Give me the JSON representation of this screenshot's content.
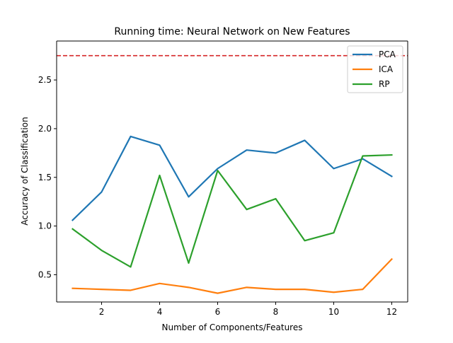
{
  "chart_data": {
    "type": "line",
    "title": "Running time: Neural Network on New Features",
    "xlabel": "Number of Components/Features",
    "ylabel": "Accuracy of Classification",
    "xlim": [
      0.45,
      12.55
    ],
    "ylim": [
      0.22,
      2.9
    ],
    "x": [
      1,
      2,
      3,
      4,
      5,
      6,
      7,
      8,
      9,
      10,
      11,
      12
    ],
    "xticks": [
      2,
      4,
      6,
      8,
      10,
      12
    ],
    "yticks": [
      0.5,
      1.0,
      1.5,
      2.0,
      2.5
    ],
    "xtick_labels": [
      "2",
      "4",
      "6",
      "8",
      "10",
      "12"
    ],
    "ytick_labels": [
      "0.5",
      "1.0",
      "1.5",
      "2.0",
      "2.5"
    ],
    "grid": false,
    "legend_position": "top-right",
    "reference_line": {
      "y": 2.75,
      "color": "#d62728",
      "style": "dashed"
    },
    "series": [
      {
        "name": "PCA",
        "color": "#1f77b4",
        "values": [
          1.06,
          1.35,
          1.92,
          1.83,
          1.3,
          1.59,
          1.78,
          1.75,
          1.88,
          1.59,
          1.69,
          1.51
        ]
      },
      {
        "name": "ICA",
        "color": "#ff7f0e",
        "values": [
          0.36,
          0.35,
          0.34,
          0.41,
          0.37,
          0.31,
          0.37,
          0.35,
          0.35,
          0.32,
          0.35,
          0.66
        ]
      },
      {
        "name": "RP",
        "color": "#2ca02c",
        "values": [
          0.97,
          0.75,
          0.58,
          1.52,
          0.62,
          1.57,
          1.17,
          1.28,
          0.85,
          0.93,
          1.72,
          1.73
        ]
      }
    ]
  }
}
